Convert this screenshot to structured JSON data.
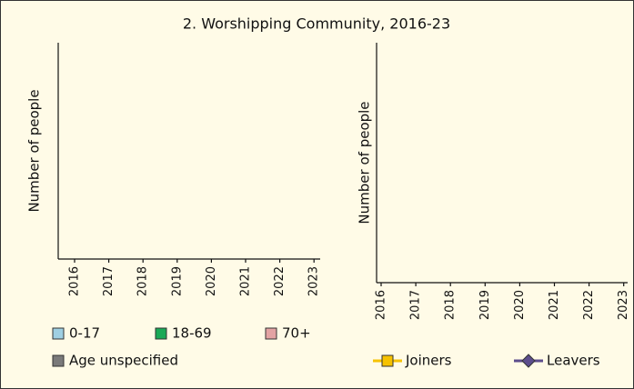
{
  "title": "2. Worshipping Community, 2016-23",
  "chart_data": [
    {
      "type": "bar",
      "stacked": true,
      "y_label": "Number of people",
      "categories": [
        "2016",
        "2017",
        "2018",
        "2019",
        "2020",
        "2021",
        "2022",
        "2023"
      ],
      "series": [
        {
          "name": "0-17",
          "color": "#9fcfe2"
        },
        {
          "name": "18-69",
          "color": "#1aa957"
        },
        {
          "name": "70+",
          "color": "#e3a3a3"
        },
        {
          "name": "Age unspecified",
          "color": "#7a7a7a"
        }
      ]
    },
    {
      "type": "line",
      "y_label": "Number of people",
      "categories": [
        "2016",
        "2017",
        "2018",
        "2019",
        "2020",
        "2021",
        "2022",
        "2023"
      ],
      "series": [
        {
          "name": "Joiners",
          "color": "#f6c200",
          "marker": "square"
        },
        {
          "name": "Leavers",
          "color": "#5c4d8c",
          "marker": "diamond"
        }
      ]
    }
  ]
}
